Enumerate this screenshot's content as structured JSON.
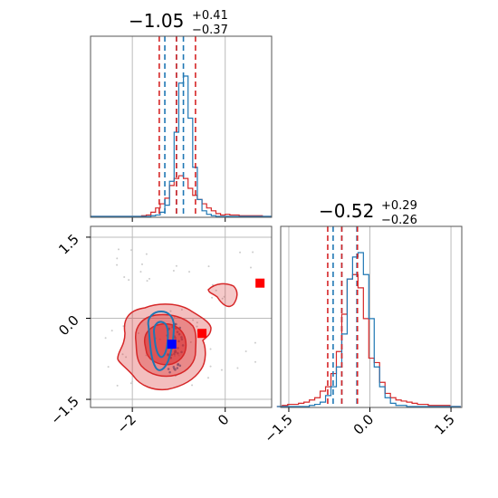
{
  "chart_data": {
    "type": "corner",
    "params": [
      {
        "title_value": "−1.05",
        "title_plus": "+0.41",
        "title_minus": "−0.37"
      },
      {
        "title_value": "−0.52",
        "title_plus": "+0.29",
        "title_minus": "−0.26"
      }
    ],
    "x_range": [
      -2.9,
      1.0
    ],
    "y_range": [
      -1.65,
      1.7
    ],
    "x_ticks": [
      {
        "value": -2,
        "label": "−2"
      },
      {
        "value": 0,
        "label": "0"
      }
    ],
    "y_ticks": [
      {
        "value": 1.5,
        "label": "1.5"
      },
      {
        "value": 0.0,
        "label": "0.0"
      },
      {
        "value": -1.5,
        "label": "−1.5"
      }
    ],
    "hist2_ticks": [
      {
        "value": -1.5,
        "label": "−1.5"
      },
      {
        "value": 0.0,
        "label": "0.0"
      },
      {
        "value": 1.5,
        "label": "1.5"
      }
    ],
    "truth_lines": {
      "x": [
        -2,
        0,
        1.0
      ],
      "y": [
        1.5,
        0.0,
        -1.5
      ]
    },
    "series": [
      {
        "name": "blue",
        "color": "#1f77b4",
        "x_quantiles": [
          -1.3,
          -1.05,
          -0.9
        ],
        "y_quantiles": [
          -0.68,
          -0.52,
          -0.24
        ],
        "marker": [
          -1.15,
          -0.48
        ]
      },
      {
        "name": "red",
        "color": "#d62728",
        "x_quantiles": [
          -1.42,
          -1.05,
          -0.64
        ],
        "y_quantiles": [
          -0.78,
          -0.52,
          -0.23
        ],
        "markers": [
          [
            -0.5,
            -0.28
          ],
          [
            0.75,
            0.65
          ]
        ]
      }
    ],
    "hist1": {
      "bin_edges_start": -2.9,
      "bin_width": 0.1,
      "blue": [
        0,
        0,
        0,
        0,
        0,
        0,
        0,
        0,
        0,
        0,
        0,
        0,
        0,
        0.5,
        1,
        3,
        8,
        25,
        60,
        95,
        100,
        70,
        35,
        12,
        4,
        1.5,
        0.5,
        0,
        0,
        0,
        0,
        0,
        0,
        0,
        0,
        0,
        0,
        0,
        0
      ],
      "red": [
        0,
        0,
        0,
        0,
        0,
        0,
        0,
        0,
        0,
        0,
        0,
        0.5,
        1,
        3,
        6,
        9,
        13,
        22,
        27,
        29,
        27,
        20,
        15,
        12,
        9,
        6,
        4,
        2,
        1,
        1.5,
        1,
        1,
        0.5,
        0.5,
        0.5,
        0.5,
        0.5,
        0,
        0
      ]
    },
    "hist2": {
      "bin_edges_start": -1.72,
      "bin_width": 0.1,
      "blue": [
        0,
        0,
        0,
        0,
        0,
        0,
        0.5,
        1,
        2,
        5,
        9,
        18,
        33,
        58,
        68,
        70,
        60,
        40,
        18,
        9,
        4,
        1.5,
        0.5,
        0.5,
        0,
        0,
        0,
        0,
        0,
        0,
        0,
        0,
        0,
        0
      ],
      "red": [
        0,
        0.5,
        1,
        1,
        1.5,
        2,
        3,
        4,
        7,
        9,
        15,
        25,
        42,
        58,
        60,
        54,
        40,
        22,
        20,
        11,
        6,
        4,
        3,
        2.5,
        2,
        1.5,
        1,
        1,
        0.5,
        0.5,
        0.5,
        0.5,
        0,
        0
      ]
    }
  }
}
